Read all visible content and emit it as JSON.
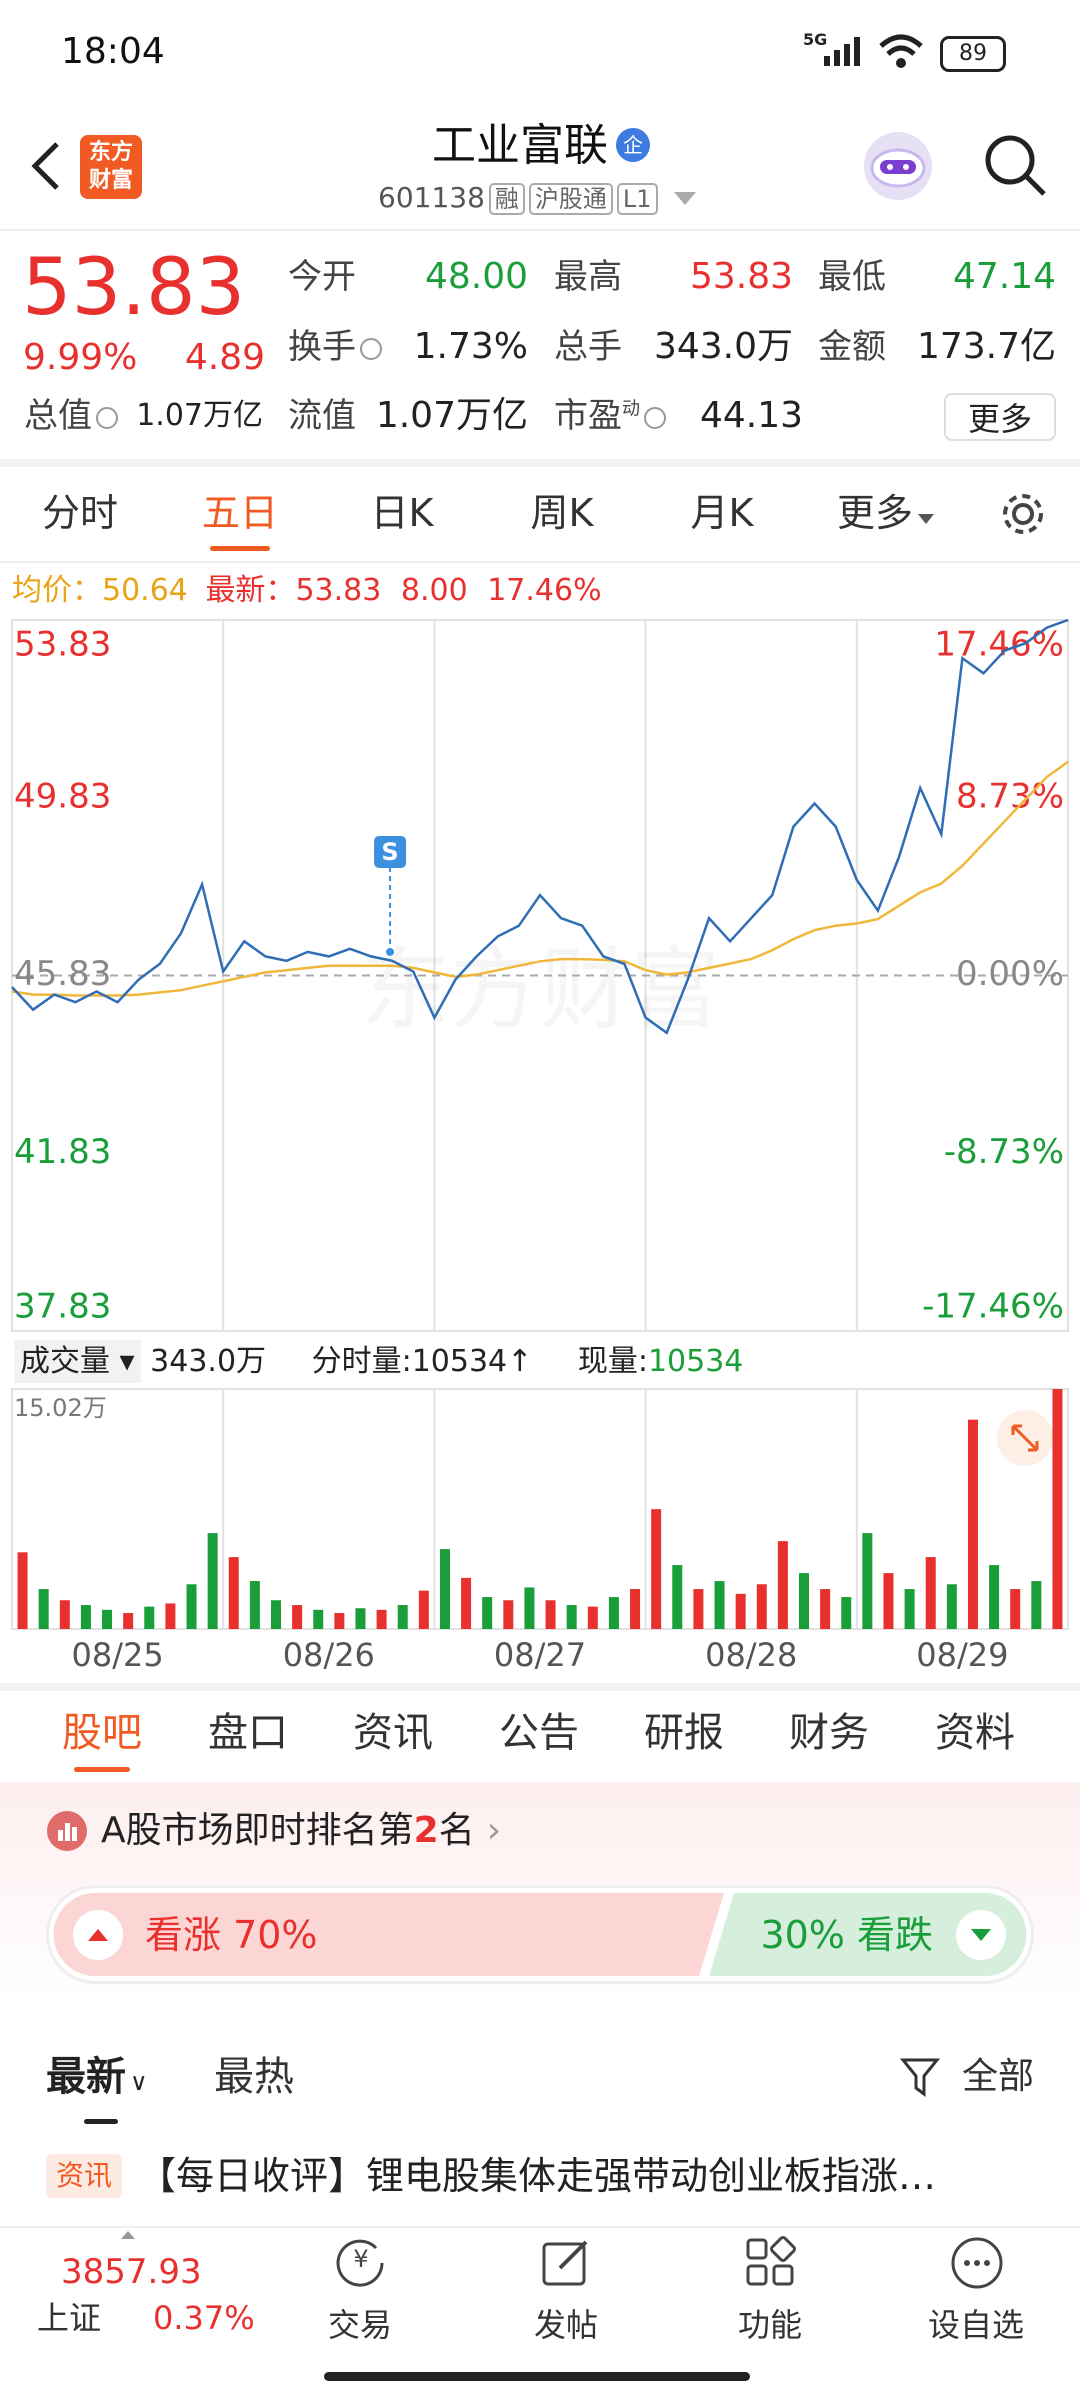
{
  "status": {
    "time": "18:04",
    "network": "5G",
    "battery": "89"
  },
  "header": {
    "logo": [
      "东方",
      "财富"
    ],
    "title": "工业富联",
    "badge": "企",
    "code": "601138",
    "tags": [
      "融",
      "沪股通",
      "L1"
    ]
  },
  "quote": {
    "price": "53.83",
    "change_pct": "9.99%",
    "change": "4.89",
    "fields": [
      {
        "label": "今开",
        "value": "48.00"
      },
      {
        "label": "最高",
        "value": "53.83"
      },
      {
        "label": "最低",
        "value": "47.14"
      },
      {
        "label": "换手",
        "value": "1.73%"
      },
      {
        "label": "总手",
        "value": "343.0万"
      },
      {
        "label": "金额",
        "value": "173.7亿"
      },
      {
        "label": "总值",
        "value": "1.07万亿"
      },
      {
        "label": "流值",
        "value": "1.07万亿"
      },
      {
        "label": "市盈",
        "sup": "动",
        "value": "44.13"
      }
    ],
    "more": "更多"
  },
  "period_tabs": [
    "分时",
    "五日",
    "日K",
    "周K",
    "月K",
    "更多"
  ],
  "chart_info": {
    "avg_label": "均价：",
    "avg": "50.64",
    "latest_label": "最新：",
    "latest": "53.83",
    "change": "8.00",
    "change_pct": "17.46%"
  },
  "volume_info": {
    "label": "成交量",
    "total": "343.0万",
    "tick_volume": "分时量:10534↑",
    "current_label": "现量:",
    "current": "10534"
  },
  "chart_data": [
    {
      "type": "line",
      "watermark": "东方财富",
      "x": [
        0,
        0.1,
        0.2,
        0.3,
        0.4,
        0.5,
        0.6,
        0.7,
        0.8,
        0.9,
        1,
        1.1,
        1.2,
        1.3,
        1.4,
        1.5,
        1.6,
        1.7,
        1.8,
        1.9,
        2,
        2.1,
        2.2,
        2.3,
        2.4,
        2.5,
        2.6,
        2.7,
        2.8,
        2.9,
        3,
        3.1,
        3.2,
        3.3,
        3.4,
        3.5,
        3.6,
        3.7,
        3.8,
        3.9,
        4,
        4.1,
        4.2,
        4.3,
        4.4,
        4.5,
        4.6,
        4.7,
        4.8,
        4.9,
        5
      ],
      "series": [
        {
          "color": "#2f6db5",
          "values": [
            45.57,
            45.06,
            45.4,
            45.23,
            45.47,
            45.23,
            45.74,
            46.09,
            46.78,
            47.88,
            45.92,
            46.6,
            46.26,
            46.16,
            46.36,
            46.26,
            46.43,
            46.26,
            46.16,
            45.92,
            44.88,
            45.74,
            46.26,
            46.71,
            46.95,
            47.64,
            47.12,
            46.95,
            46.26,
            46.09,
            44.88,
            44.54,
            45.74,
            47.12,
            46.6,
            47.12,
            47.64,
            49.18,
            49.7,
            49.18,
            47.98,
            47.29,
            48.5,
            50.05,
            49.01,
            52.97,
            52.63,
            53.14,
            53.31,
            53.66,
            53.83
          ]
        },
        {
          "color": "#f0b73a",
          "values": [
            45.47,
            45.4,
            45.4,
            45.38,
            45.38,
            45.38,
            45.4,
            45.45,
            45.5,
            45.6,
            45.7,
            45.8,
            45.9,
            45.95,
            46,
            46.05,
            46.05,
            46.05,
            46.05,
            46,
            45.9,
            45.8,
            45.85,
            45.95,
            46.05,
            46.15,
            46.2,
            46.2,
            46.18,
            46.15,
            45.95,
            45.85,
            45.9,
            46,
            46.1,
            46.2,
            46.4,
            46.65,
            46.85,
            46.95,
            47,
            47.1,
            47.4,
            47.7,
            47.9,
            48.3,
            48.8,
            49.3,
            49.8,
            50.3,
            50.64
          ]
        }
      ],
      "xlim": [
        0,
        5
      ],
      "ylim": [
        37.83,
        53.83
      ],
      "yticks": [
        53.83,
        49.83,
        45.83,
        41.83,
        37.83
      ],
      "y2lim": [
        -17.46,
        17.46
      ],
      "y2ticks": [
        {
          "value": 17.46,
          "label": "17.46%"
        },
        {
          "value": 8.73,
          "label": "8.73%"
        },
        {
          "value": 0,
          "label": "0.00%"
        },
        {
          "value": -8.73,
          "label": "-8.73%"
        },
        {
          "value": -17.46,
          "label": "-17.46%"
        }
      ],
      "annotations": [
        {
          "x": 1.79,
          "y": 46.36,
          "label": "S"
        }
      ]
    },
    {
      "type": "bar",
      "x": [
        0.05,
        0.15,
        0.25,
        0.35,
        0.45,
        0.55,
        0.65,
        0.75,
        0.85,
        0.95,
        1.05,
        1.15,
        1.25,
        1.35,
        1.45,
        1.55,
        1.65,
        1.75,
        1.85,
        1.95,
        2.05,
        2.15,
        2.25,
        2.35,
        2.45,
        2.55,
        2.65,
        2.75,
        2.85,
        2.95,
        3.05,
        3.15,
        3.25,
        3.35,
        3.45,
        3.55,
        3.65,
        3.75,
        3.85,
        3.95,
        4.05,
        4.15,
        4.25,
        4.35,
        4.45,
        4.55,
        4.65,
        4.75,
        4.85,
        4.95
      ],
      "values": [
        4.8,
        2.5,
        1.8,
        1.5,
        1.2,
        1,
        1.4,
        1.6,
        2.8,
        6,
        4.5,
        3,
        1.8,
        1.5,
        1.2,
        1,
        1.3,
        1.2,
        1.5,
        2.4,
        5,
        3.2,
        2,
        1.8,
        2.6,
        1.8,
        1.5,
        1.4,
        2,
        2.5,
        7.5,
        4,
        2.5,
        3,
        2.2,
        2.8,
        5.5,
        3.5,
        2.5,
        2,
        6,
        3.5,
        2.5,
        4.5,
        2.8,
        13.1,
        4,
        2.5,
        3,
        15.02
      ],
      "colors": [
        "#e8312f",
        "#1a9e3a",
        "#e8312f",
        "#1a9e3a",
        "#1a9e3a",
        "#e8312f",
        "#1a9e3a",
        "#e8312f",
        "#1a9e3a",
        "#1a9e3a",
        "#e8312f",
        "#1a9e3a",
        "#1a9e3a",
        "#e8312f",
        "#1a9e3a",
        "#e8312f",
        "#1a9e3a",
        "#e8312f",
        "#1a9e3a",
        "#e8312f",
        "#1a9e3a",
        "#e8312f",
        "#1a9e3a",
        "#e8312f",
        "#1a9e3a",
        "#e8312f",
        "#1a9e3a",
        "#e8312f",
        "#1a9e3a",
        "#e8312f",
        "#e8312f",
        "#1a9e3a",
        "#e8312f",
        "#1a9e3a",
        "#e8312f",
        "#e8312f",
        "#e8312f",
        "#1a9e3a",
        "#e8312f",
        "#1a9e3a",
        "#1a9e3a",
        "#e8312f",
        "#1a9e3a",
        "#e8312f",
        "#1a9e3a",
        "#e8312f",
        "#1a9e3a",
        "#e8312f",
        "#1a9e3a",
        "#e8312f"
      ],
      "xlim": [
        0,
        5
      ],
      "ylim": [
        0,
        15.02
      ],
      "yticks": [
        {
          "value": 15.02,
          "label": "15.02万"
        }
      ],
      "xticks": [
        {
          "value": 0.5,
          "label": "08/25"
        },
        {
          "value": 1.5,
          "label": "08/26"
        },
        {
          "value": 2.5,
          "label": "08/27"
        },
        {
          "value": 3.5,
          "label": "08/28"
        },
        {
          "value": 4.5,
          "label": "08/29"
        }
      ]
    }
  ],
  "detail_tabs": [
    "股吧",
    "盘口",
    "资讯",
    "公告",
    "研报",
    "财务",
    "资料"
  ],
  "ranking": {
    "prefix": "A股市场即时排名第",
    "rank": "2",
    "suffix": "名"
  },
  "sentiment": {
    "bull": "看涨 70%",
    "bear": "30% 看跌"
  },
  "feed_tabs": [
    "最新",
    "最热"
  ],
  "filter": "全部",
  "news": [
    {
      "tag": "资讯",
      "title": "【每日收评】锂电股集体走强带动创业板指涨…"
    }
  ],
  "index": {
    "value": "3857.93",
    "name": "上证",
    "change": "0.37%"
  },
  "nav": [
    "交易",
    "发帖",
    "功能",
    "设自选"
  ]
}
